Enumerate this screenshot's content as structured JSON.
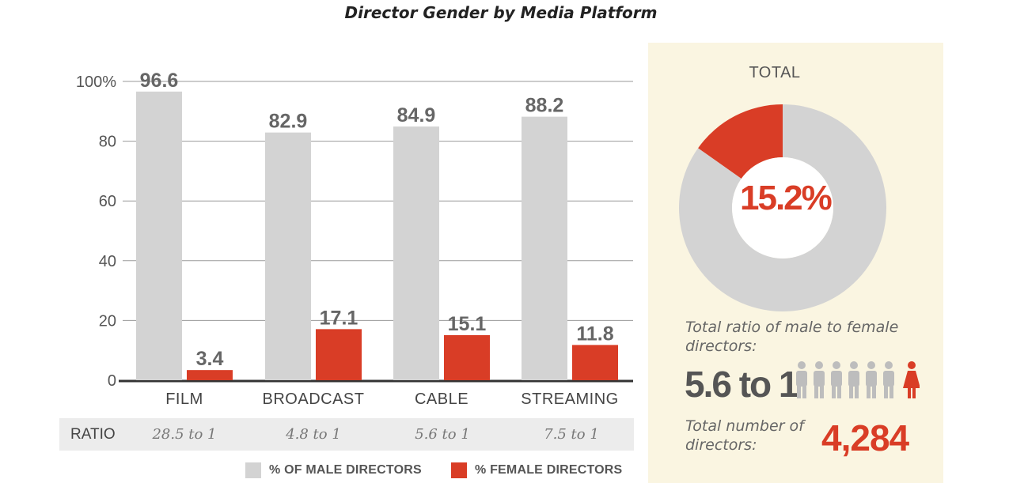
{
  "chart_data": [
    {
      "type": "bar",
      "title": "Director Gender by Media Platform",
      "categories": [
        "FILM",
        "BROADCAST",
        "CABLE",
        "STREAMING"
      ],
      "series": [
        {
          "name": "% OF MALE DIRECTORS",
          "values": [
            96.6,
            82.9,
            84.9,
            88.2
          ],
          "color": "#d3d3d3"
        },
        {
          "name": "% FEMALE DIRECTORS",
          "values": [
            3.4,
            17.1,
            15.1,
            11.8
          ],
          "color": "#d93d26"
        }
      ],
      "value_labels": {
        "male": [
          "96.6",
          "82.9",
          "84.9",
          "88.2"
        ],
        "female": [
          "3.4",
          "17.1",
          "15.1",
          "11.8"
        ]
      },
      "y_ticks": [
        "0",
        "20",
        "40",
        "60",
        "80",
        "100%"
      ],
      "y_tick_values": [
        0,
        20,
        40,
        60,
        80,
        100
      ],
      "ylim": [
        0,
        100
      ],
      "grid": true,
      "legend_position": "bottom"
    },
    {
      "type": "pie",
      "title": "TOTAL",
      "slices": [
        {
          "value": 15.2,
          "color": "#d93d26"
        },
        {
          "value": 84.8,
          "color": "#d3d3d3"
        }
      ],
      "center_label": "15.2%"
    }
  ],
  "ratio_row": {
    "header": "RATIO",
    "values": [
      "28.5 to 1",
      "4.8 to 1",
      "5.6 to 1",
      "7.5 to 1"
    ]
  },
  "summary": {
    "ratio_caption": "Total ratio of male to female directors:",
    "ratio_value": "5.6 to 1",
    "icons": {
      "male": "male-person-icon",
      "female": "female-person-icon",
      "male_count": 6,
      "female_count": 1
    },
    "count_caption": "Total number of directors:",
    "count_value": "4,284"
  },
  "colors": {
    "male": "#d3d3d3",
    "female": "#d93d26",
    "panel": "#faf5e1",
    "ratio_row": "#ececec"
  }
}
